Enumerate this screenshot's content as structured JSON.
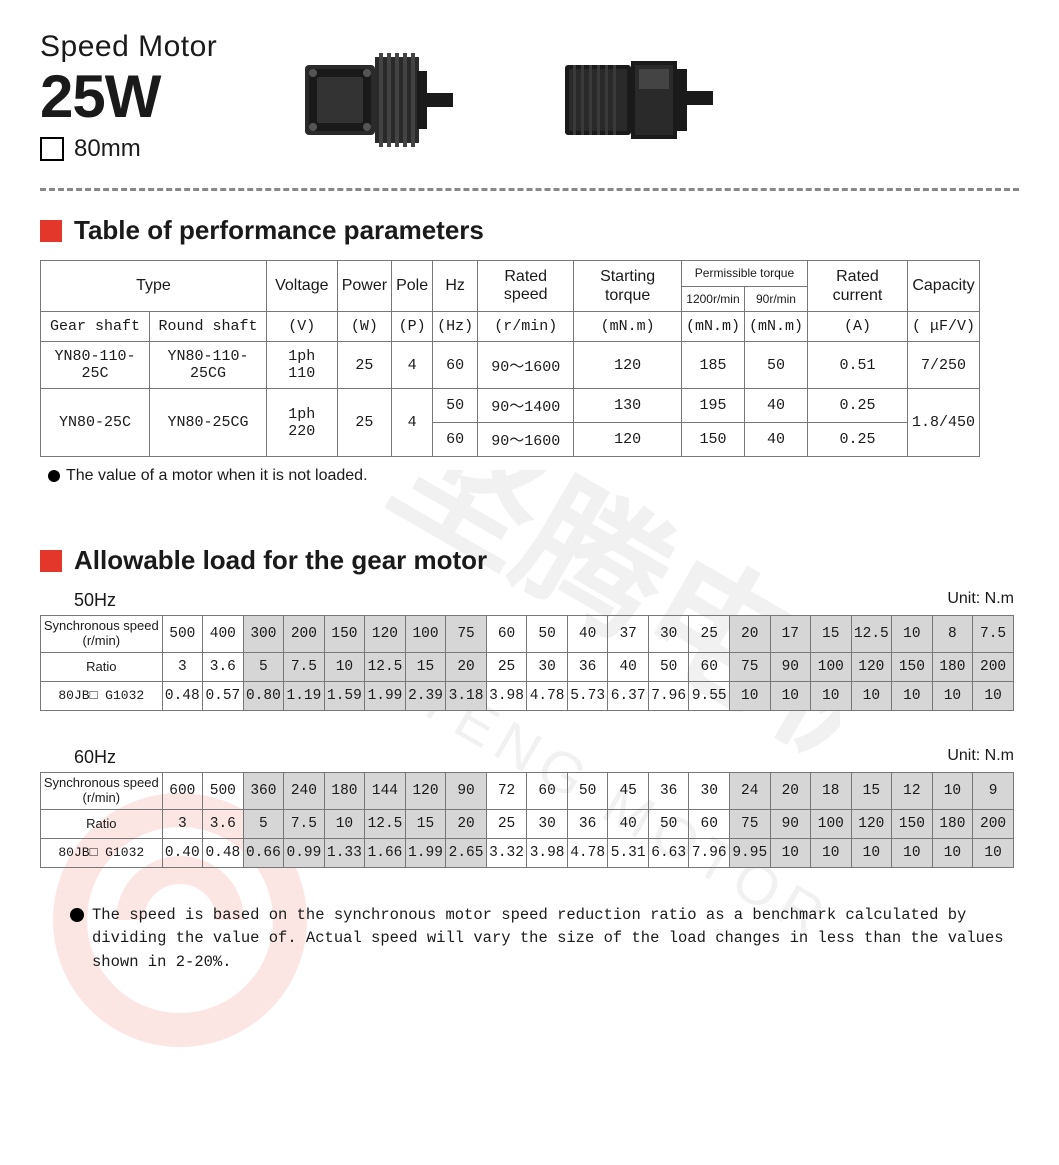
{
  "header": {
    "line1": "Speed Motor",
    "line2": "25W",
    "size": "80mm"
  },
  "sections": {
    "perf_title": "Table of performance parameters",
    "load_title": "Allowable load  for the gear motor"
  },
  "perf_headers": {
    "type": "Type",
    "voltage": "Voltage",
    "power": "Power",
    "pole": "Pole",
    "hz": "Hz",
    "rated_speed": "Rated speed",
    "start_torque": "Starting torque",
    "perm_torque": "Permissible torque",
    "perm_sub1": "1200r/min",
    "perm_sub2": "90r/min",
    "rated_current": "Rated current",
    "capacity": "Capacity",
    "gear_shaft": "Gear shaft",
    "round_shaft": "Round shaft",
    "u_v": "(V)",
    "u_w": "(W)",
    "u_p": "(P)",
    "u_hz": "(Hz)",
    "u_rmin": "(r/min)",
    "u_mnm": "(mN.m)",
    "u_a": "(A)",
    "u_ufv": "( μF/V)"
  },
  "perf_rows": [
    {
      "gear": "YN80-110-25C",
      "round": "YN80-110-25CG",
      "volt": "1ph 110",
      "power": "25",
      "pole": "4",
      "hz": "60",
      "speed": "90～1600",
      "start": "120",
      "pt1": "185",
      "pt2": "50",
      "cur": "0.51",
      "cap": "7/250"
    },
    {
      "gear": "YN80-25C",
      "round": "YN80-25CG",
      "volt": "1ph 220",
      "power": "25",
      "pole": "4",
      "sub": [
        {
          "hz": "50",
          "speed": "90～1400",
          "start": "130",
          "pt1": "195",
          "pt2": "40",
          "cur": "0.25"
        },
        {
          "hz": "60",
          "speed": "90～1600",
          "start": "120",
          "pt1": "150",
          "pt2": "40",
          "cur": "0.25"
        }
      ],
      "cap": "1.8/450"
    }
  ],
  "perf_note": "The value of a motor when it is not loaded.",
  "load_unit": "Unit: N.m",
  "load_rowheads": {
    "sync": "Synchronous speed(r/min)",
    "ratio": "Ratio",
    "model": "80JB□ G1032"
  },
  "load_50": {
    "label": "50Hz",
    "speed": [
      "500",
      "400",
      "300",
      "200",
      "150",
      "120",
      "100",
      "75",
      "60",
      "50",
      "40",
      "37",
      "30",
      "25",
      "20",
      "17",
      "15",
      "12.5",
      "10",
      "8",
      "7.5"
    ],
    "ratio": [
      "3",
      "3.6",
      "5",
      "7.5",
      "10",
      "12.5",
      "15",
      "20",
      "25",
      "30",
      "36",
      "40",
      "50",
      "60",
      "75",
      "90",
      "100",
      "120",
      "150",
      "180",
      "200"
    ],
    "torque": [
      "0.48",
      "0.57",
      "0.80",
      "1.19",
      "1.59",
      "1.99",
      "2.39",
      "3.18",
      "3.98",
      "4.78",
      "5.73",
      "6.37",
      "7.96",
      "9.55",
      "10",
      "10",
      "10",
      "10",
      "10",
      "10",
      "10"
    ],
    "shade": [
      0,
      0,
      1,
      1,
      1,
      1,
      1,
      1,
      0,
      0,
      0,
      0,
      0,
      0,
      1,
      1,
      1,
      1,
      1,
      1,
      1
    ]
  },
  "load_60": {
    "label": "60Hz",
    "speed": [
      "600",
      "500",
      "360",
      "240",
      "180",
      "144",
      "120",
      "90",
      "72",
      "60",
      "50",
      "45",
      "36",
      "30",
      "24",
      "20",
      "18",
      "15",
      "12",
      "10",
      "9"
    ],
    "ratio": [
      "3",
      "3.6",
      "5",
      "7.5",
      "10",
      "12.5",
      "15",
      "20",
      "25",
      "30",
      "36",
      "40",
      "50",
      "60",
      "75",
      "90",
      "100",
      "120",
      "150",
      "180",
      "200"
    ],
    "torque": [
      "0.40",
      "0.48",
      "0.66",
      "0.99",
      "1.33",
      "1.66",
      "1.99",
      "2.65",
      "3.32",
      "3.98",
      "4.78",
      "5.31",
      "6.63",
      "7.96",
      "9.95",
      "10",
      "10",
      "10",
      "10",
      "10",
      "10"
    ],
    "shade": [
      0,
      0,
      1,
      1,
      1,
      1,
      1,
      1,
      0,
      0,
      0,
      0,
      0,
      0,
      1,
      1,
      1,
      1,
      1,
      1,
      1
    ]
  },
  "footnote": "The speed is based on the synchronous motor speed reduction ratio as a benchmark calculated by dividing the value of. Actual speed will vary the size of the load changes in less than the values shown in 2-20%.",
  "colors": {
    "accent_red": "#e3372b",
    "shade_bg": "#d6d6d6",
    "border": "#777777",
    "wm_red": "#e3372b",
    "wm_gray": "#888888"
  }
}
